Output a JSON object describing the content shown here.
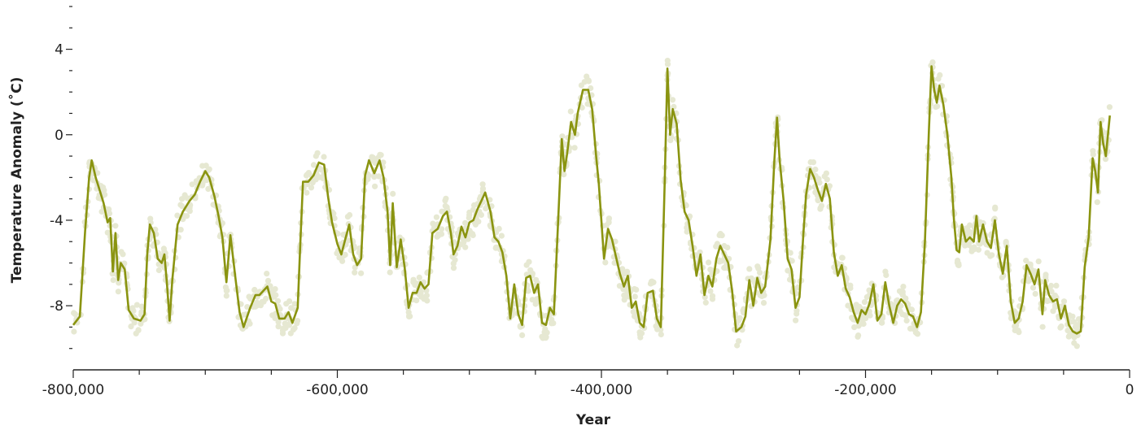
{
  "chart_data": {
    "type": "line",
    "title": "",
    "xlabel": "Year",
    "ylabel": "Temperature Anomaly (˚C)",
    "xlim": [
      -800000,
      0
    ],
    "ylim": [
      -11,
      6
    ],
    "x_ticks": [
      -800000,
      -600000,
      -400000,
      -200000,
      0
    ],
    "x_tick_labels": [
      "-800,000",
      "-600,000",
      "-400,000",
      "-200,000",
      "0"
    ],
    "y_ticks": [
      4,
      0,
      -4,
      -8
    ],
    "y_tick_labels": [
      "4",
      "0",
      "-4",
      "-8"
    ],
    "grid": false,
    "legend": "none",
    "colors": {
      "line": "#8a9410",
      "points": "#e6e8d2"
    },
    "series": [
      {
        "values": [
          [
            -800000,
            -8.9
          ],
          [
            -795000,
            -8.5
          ],
          [
            -791000,
            -4.5
          ],
          [
            -788000,
            -2.0
          ],
          [
            -786000,
            -1.2
          ],
          [
            -783000,
            -2.0
          ],
          [
            -780000,
            -2.6
          ],
          [
            -777000,
            -3.2
          ],
          [
            -774000,
            -4.1
          ],
          [
            -772000,
            -3.9
          ],
          [
            -770000,
            -6.4
          ],
          [
            -768000,
            -4.6
          ],
          [
            -766000,
            -6.8
          ],
          [
            -764000,
            -6.0
          ],
          [
            -761000,
            -6.3
          ],
          [
            -758000,
            -8.2
          ],
          [
            -754000,
            -8.6
          ],
          [
            -749000,
            -8.7
          ],
          [
            -746000,
            -8.4
          ],
          [
            -744000,
            -5.6
          ],
          [
            -742000,
            -4.2
          ],
          [
            -739000,
            -4.6
          ],
          [
            -736000,
            -5.8
          ],
          [
            -733000,
            -6.0
          ],
          [
            -731000,
            -5.6
          ],
          [
            -729000,
            -7.0
          ],
          [
            -727000,
            -8.7
          ],
          [
            -725000,
            -6.8
          ],
          [
            -721000,
            -4.2
          ],
          [
            -717000,
            -3.6
          ],
          [
            -712000,
            -3.1
          ],
          [
            -708000,
            -2.8
          ],
          [
            -704000,
            -2.2
          ],
          [
            -700000,
            -1.7
          ],
          [
            -697000,
            -2.0
          ],
          [
            -693000,
            -2.9
          ],
          [
            -690000,
            -3.8
          ],
          [
            -687000,
            -4.8
          ],
          [
            -684000,
            -6.9
          ],
          [
            -681000,
            -4.7
          ],
          [
            -677000,
            -6.8
          ],
          [
            -674000,
            -8.3
          ],
          [
            -671000,
            -9.0
          ],
          [
            -666000,
            -8.1
          ],
          [
            -662000,
            -7.5
          ],
          [
            -659000,
            -7.5
          ],
          [
            -656000,
            -7.3
          ],
          [
            -653000,
            -7.1
          ],
          [
            -650000,
            -7.8
          ],
          [
            -647000,
            -7.9
          ],
          [
            -644000,
            -8.6
          ],
          [
            -640000,
            -8.6
          ],
          [
            -637000,
            -8.3
          ],
          [
            -634000,
            -8.8
          ],
          [
            -630000,
            -8.1
          ],
          [
            -628000,
            -5.0
          ],
          [
            -626000,
            -2.2
          ],
          [
            -622000,
            -2.2
          ],
          [
            -618000,
            -1.9
          ],
          [
            -614000,
            -1.3
          ],
          [
            -610000,
            -1.4
          ],
          [
            -607000,
            -2.9
          ],
          [
            -604000,
            -4.1
          ],
          [
            -600000,
            -5.1
          ],
          [
            -597000,
            -5.6
          ],
          [
            -594000,
            -4.9
          ],
          [
            -591000,
            -4.2
          ],
          [
            -588000,
            -5.6
          ],
          [
            -585000,
            -6.1
          ],
          [
            -582000,
            -5.8
          ],
          [
            -579000,
            -1.9
          ],
          [
            -576000,
            -1.2
          ],
          [
            -572000,
            -1.8
          ],
          [
            -568000,
            -1.2
          ],
          [
            -565000,
            -2.0
          ],
          [
            -562000,
            -3.6
          ],
          [
            -560000,
            -6.1
          ],
          [
            -558000,
            -3.2
          ],
          [
            -555000,
            -6.2
          ],
          [
            -552000,
            -4.9
          ],
          [
            -549000,
            -6.2
          ],
          [
            -546000,
            -8.1
          ],
          [
            -543000,
            -7.4
          ],
          [
            -540000,
            -7.4
          ],
          [
            -537000,
            -6.9
          ],
          [
            -534000,
            -7.2
          ],
          [
            -531000,
            -7.0
          ],
          [
            -528000,
            -4.6
          ],
          [
            -524000,
            -4.4
          ],
          [
            -520000,
            -3.8
          ],
          [
            -517000,
            -3.6
          ],
          [
            -514000,
            -4.6
          ],
          [
            -512000,
            -5.6
          ],
          [
            -509000,
            -5.2
          ],
          [
            -506000,
            -4.3
          ],
          [
            -503000,
            -4.8
          ],
          [
            -500000,
            -4.1
          ],
          [
            -497000,
            -4.0
          ],
          [
            -494000,
            -3.5
          ],
          [
            -491000,
            -3.1
          ],
          [
            -488000,
            -2.7
          ],
          [
            -484000,
            -3.6
          ],
          [
            -481000,
            -4.8
          ],
          [
            -478000,
            -5.0
          ],
          [
            -475000,
            -5.5
          ],
          [
            -472000,
            -6.6
          ],
          [
            -469000,
            -8.6
          ],
          [
            -466000,
            -7.0
          ],
          [
            -463000,
            -8.4
          ],
          [
            -460000,
            -8.9
          ],
          [
            -457000,
            -6.7
          ],
          [
            -454000,
            -6.6
          ],
          [
            -451000,
            -7.4
          ],
          [
            -448000,
            -7.0
          ],
          [
            -445000,
            -8.8
          ],
          [
            -442000,
            -8.9
          ],
          [
            -439000,
            -8.1
          ],
          [
            -436000,
            -8.4
          ],
          [
            -433000,
            -4.3
          ],
          [
            -430000,
            -0.2
          ],
          [
            -428000,
            -1.7
          ],
          [
            -426000,
            -0.9
          ],
          [
            -423000,
            0.6
          ],
          [
            -420000,
            0.0
          ],
          [
            -418000,
            1.0
          ],
          [
            -414000,
            2.1
          ],
          [
            -410000,
            2.1
          ],
          [
            -407000,
            1.2
          ],
          [
            -404000,
            -1.0
          ],
          [
            -402000,
            -2.3
          ],
          [
            -398000,
            -5.8
          ],
          [
            -395000,
            -4.4
          ],
          [
            -392000,
            -4.9
          ],
          [
            -389000,
            -5.7
          ],
          [
            -386000,
            -6.5
          ],
          [
            -383000,
            -7.1
          ],
          [
            -380000,
            -6.6
          ],
          [
            -377000,
            -8.1
          ],
          [
            -374000,
            -7.8
          ],
          [
            -371000,
            -8.8
          ],
          [
            -368000,
            -9.0
          ],
          [
            -365000,
            -7.4
          ],
          [
            -361000,
            -7.3
          ],
          [
            -358000,
            -8.6
          ],
          [
            -355000,
            -9.0
          ],
          [
            -352000,
            -2.0
          ],
          [
            -350000,
            3.1
          ],
          [
            -348000,
            0.0
          ],
          [
            -346000,
            1.2
          ],
          [
            -343000,
            0.5
          ],
          [
            -340000,
            -2.1
          ],
          [
            -337000,
            -3.6
          ],
          [
            -334000,
            -4.0
          ],
          [
            -331000,
            -5.2
          ],
          [
            -328000,
            -6.6
          ],
          [
            -325000,
            -5.6
          ],
          [
            -322000,
            -7.5
          ],
          [
            -319000,
            -6.6
          ],
          [
            -316000,
            -7.1
          ],
          [
            -313000,
            -5.8
          ],
          [
            -310000,
            -5.2
          ],
          [
            -307000,
            -5.6
          ],
          [
            -304000,
            -6.0
          ],
          [
            -301000,
            -7.3
          ],
          [
            -298000,
            -9.2
          ],
          [
            -294000,
            -9.0
          ],
          [
            -291000,
            -8.5
          ],
          [
            -288000,
            -6.8
          ],
          [
            -285000,
            -8.0
          ],
          [
            -282000,
            -6.7
          ],
          [
            -279000,
            -7.4
          ],
          [
            -276000,
            -7.1
          ],
          [
            -272000,
            -4.9
          ],
          [
            -269000,
            -1.2
          ],
          [
            -267000,
            0.8
          ],
          [
            -265000,
            -1.2
          ],
          [
            -262000,
            -3.1
          ],
          [
            -259000,
            -5.8
          ],
          [
            -256000,
            -6.3
          ],
          [
            -253000,
            -8.1
          ],
          [
            -250000,
            -7.6
          ],
          [
            -247000,
            -4.6
          ],
          [
            -245000,
            -2.8
          ],
          [
            -242000,
            -1.6
          ],
          [
            -239000,
            -2.0
          ],
          [
            -236000,
            -2.6
          ],
          [
            -233000,
            -3.1
          ],
          [
            -230000,
            -2.3
          ],
          [
            -227000,
            -3.0
          ],
          [
            -224000,
            -5.5
          ],
          [
            -221000,
            -6.6
          ],
          [
            -218000,
            -6.1
          ],
          [
            -215000,
            -7.2
          ],
          [
            -212000,
            -7.6
          ],
          [
            -209000,
            -8.3
          ],
          [
            -206000,
            -8.8
          ],
          [
            -203000,
            -8.2
          ],
          [
            -200000,
            -8.4
          ],
          [
            -197000,
            -7.9
          ],
          [
            -194000,
            -7.0
          ],
          [
            -191000,
            -8.7
          ],
          [
            -188000,
            -8.4
          ],
          [
            -185000,
            -6.9
          ],
          [
            -182000,
            -8.0
          ],
          [
            -179000,
            -8.8
          ],
          [
            -176000,
            -8.0
          ],
          [
            -173000,
            -7.7
          ],
          [
            -170000,
            -7.9
          ],
          [
            -167000,
            -8.4
          ],
          [
            -164000,
            -8.5
          ],
          [
            -161000,
            -9.0
          ],
          [
            -158000,
            -8.3
          ],
          [
            -155000,
            -5.0
          ],
          [
            -152000,
            0.2
          ],
          [
            -150000,
            3.2
          ],
          [
            -148000,
            2.1
          ],
          [
            -146000,
            1.5
          ],
          [
            -144000,
            2.3
          ],
          [
            -141000,
            1.4
          ],
          [
            -138000,
            0.0
          ],
          [
            -135000,
            -2.0
          ],
          [
            -133000,
            -4.0
          ],
          [
            -131000,
            -5.4
          ],
          [
            -129000,
            -5.5
          ],
          [
            -127000,
            -4.2
          ],
          [
            -124000,
            -5.0
          ],
          [
            -121000,
            -4.8
          ],
          [
            -118000,
            -5.0
          ],
          [
            -116000,
            -3.8
          ],
          [
            -114000,
            -5.0
          ],
          [
            -111000,
            -4.2
          ],
          [
            -108000,
            -5.0
          ],
          [
            -105000,
            -5.3
          ],
          [
            -102000,
            -4.0
          ],
          [
            -99000,
            -5.6
          ],
          [
            -96000,
            -6.5
          ],
          [
            -93000,
            -5.2
          ],
          [
            -90000,
            -7.8
          ],
          [
            -87000,
            -8.8
          ],
          [
            -84000,
            -8.6
          ],
          [
            -81000,
            -7.8
          ],
          [
            -78000,
            -6.1
          ],
          [
            -75000,
            -6.5
          ],
          [
            -72000,
            -7.0
          ],
          [
            -69000,
            -6.3
          ],
          [
            -66000,
            -8.4
          ],
          [
            -64000,
            -6.8
          ],
          [
            -61000,
            -7.5
          ],
          [
            -58000,
            -7.8
          ],
          [
            -55000,
            -7.7
          ],
          [
            -52000,
            -8.6
          ],
          [
            -49000,
            -8.0
          ],
          [
            -46000,
            -8.9
          ],
          [
            -43000,
            -9.2
          ],
          [
            -40000,
            -9.3
          ],
          [
            -37000,
            -9.2
          ],
          [
            -34000,
            -6.2
          ],
          [
            -31000,
            -4.8
          ],
          [
            -28000,
            -1.1
          ],
          [
            -26000,
            -1.7
          ],
          [
            -24000,
            -2.7
          ],
          [
            -22000,
            0.6
          ],
          [
            -20000,
            -0.4
          ],
          [
            -18000,
            -1.0
          ],
          [
            -15000,
            0.9
          ]
        ]
      }
    ]
  }
}
